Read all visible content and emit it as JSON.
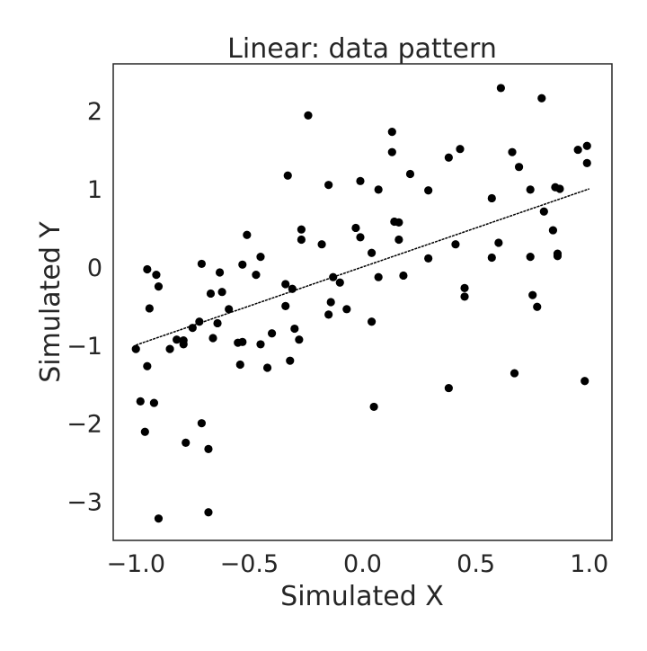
{
  "chart_data": {
    "type": "scatter",
    "title": "Linear: data pattern",
    "xlabel": "Simulated X",
    "ylabel": "Simulated Y",
    "xlim": [
      -1.1,
      1.1
    ],
    "ylim": [
      -3.5,
      2.6
    ],
    "grid": false,
    "xticks": [
      -1.0,
      -0.5,
      0.0,
      0.5,
      1.0
    ],
    "xtick_labels": [
      "−1.0",
      "−0.5",
      "0.0",
      "0.5",
      "1.0"
    ],
    "yticks": [
      -3,
      -2,
      -1,
      0,
      1,
      2
    ],
    "ytick_labels": [
      "−3",
      "−2",
      "−1",
      "0",
      "1",
      "2"
    ],
    "series": [
      {
        "type": "scatter",
        "color": "#000000",
        "points": [
          [
            -1.0,
            -1.05
          ],
          [
            -0.98,
            -1.72
          ],
          [
            -0.96,
            -2.11
          ],
          [
            -0.95,
            -0.03
          ],
          [
            -0.95,
            -1.27
          ],
          [
            -0.94,
            -0.53
          ],
          [
            -0.92,
            -1.74
          ],
          [
            -0.91,
            -0.1
          ],
          [
            -0.9,
            -0.25
          ],
          [
            -0.9,
            -3.22
          ],
          [
            -0.85,
            -1.05
          ],
          [
            -0.82,
            -0.93
          ],
          [
            -0.79,
            -0.99
          ],
          [
            -0.79,
            -0.94
          ],
          [
            -0.78,
            -2.25
          ],
          [
            -0.75,
            -0.78
          ],
          [
            -0.72,
            -0.7
          ],
          [
            -0.71,
            0.04
          ],
          [
            -0.71,
            -2.0
          ],
          [
            -0.68,
            -3.14
          ],
          [
            -0.68,
            -2.33
          ],
          [
            -0.67,
            -0.34
          ],
          [
            -0.66,
            -0.91
          ],
          [
            -0.64,
            -0.72
          ],
          [
            -0.63,
            -0.07
          ],
          [
            -0.62,
            -0.32
          ],
          [
            -0.59,
            -0.54
          ],
          [
            -0.55,
            -0.97
          ],
          [
            -0.54,
            -1.25
          ],
          [
            -0.53,
            0.03
          ],
          [
            -0.53,
            -0.96
          ],
          [
            -0.51,
            0.41
          ],
          [
            -0.47,
            -0.1
          ],
          [
            -0.45,
            0.13
          ],
          [
            -0.45,
            -0.99
          ],
          [
            -0.42,
            -1.29
          ],
          [
            -0.4,
            -0.85
          ],
          [
            -0.34,
            -0.22
          ],
          [
            -0.34,
            -0.5
          ],
          [
            -0.33,
            1.17
          ],
          [
            -0.32,
            -1.2
          ],
          [
            -0.31,
            -0.28
          ],
          [
            -0.3,
            -0.79
          ],
          [
            -0.28,
            -0.93
          ],
          [
            -0.27,
            0.48
          ],
          [
            -0.27,
            0.35
          ],
          [
            -0.24,
            1.94
          ],
          [
            -0.18,
            0.29
          ],
          [
            -0.15,
            1.05
          ],
          [
            -0.15,
            -0.61
          ],
          [
            -0.14,
            -0.45
          ],
          [
            -0.13,
            -0.13
          ],
          [
            -0.1,
            -0.2
          ],
          [
            -0.07,
            -0.54
          ],
          [
            -0.03,
            0.5
          ],
          [
            -0.01,
            0.38
          ],
          [
            -0.01,
            1.1
          ],
          [
            0.04,
            0.18
          ],
          [
            0.04,
            -0.7
          ],
          [
            0.05,
            -1.79
          ],
          [
            0.07,
            0.99
          ],
          [
            0.07,
            -0.13
          ],
          [
            0.13,
            1.73
          ],
          [
            0.13,
            1.47
          ],
          [
            0.14,
            0.58
          ],
          [
            0.16,
            0.57
          ],
          [
            0.16,
            0.35
          ],
          [
            0.18,
            -0.11
          ],
          [
            0.21,
            1.19
          ],
          [
            0.29,
            0.11
          ],
          [
            0.29,
            0.98
          ],
          [
            0.38,
            1.4
          ],
          [
            0.38,
            -1.55
          ],
          [
            0.41,
            0.29
          ],
          [
            0.43,
            1.51
          ],
          [
            0.45,
            -0.27
          ],
          [
            0.45,
            -0.38
          ],
          [
            0.57,
            0.88
          ],
          [
            0.57,
            0.12
          ],
          [
            0.6,
            0.31
          ],
          [
            0.61,
            2.29
          ],
          [
            0.66,
            1.47
          ],
          [
            0.67,
            -1.36
          ],
          [
            0.69,
            1.28
          ],
          [
            0.74,
            0.99
          ],
          [
            0.74,
            0.13
          ],
          [
            0.75,
            -0.36
          ],
          [
            0.77,
            -0.51
          ],
          [
            0.79,
            2.16
          ],
          [
            0.8,
            0.71
          ],
          [
            0.84,
            0.47
          ],
          [
            0.85,
            1.02
          ],
          [
            0.86,
            0.17
          ],
          [
            0.86,
            0.14
          ],
          [
            0.87,
            1.0
          ],
          [
            0.95,
            1.5
          ],
          [
            0.98,
            -1.46
          ],
          [
            0.99,
            1.33
          ],
          [
            0.99,
            1.55
          ]
        ]
      },
      {
        "type": "line",
        "style": "dashed",
        "color": "#000000",
        "x": [
          -1.0,
          1.0
        ],
        "y": [
          -1.0,
          1.0
        ]
      }
    ]
  }
}
